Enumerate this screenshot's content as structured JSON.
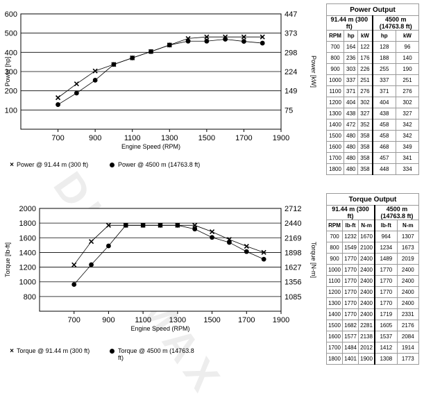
{
  "watermark": "DURAMAX",
  "power_table": {
    "title": "Power Output",
    "group1": "91.44 m (300 ft)",
    "group2": "4500 m (14763.8 ft)",
    "columns": [
      "RPM",
      "hp",
      "kW",
      "hp",
      "kW"
    ],
    "rows": [
      [
        "700",
        "164",
        "122",
        "128",
        "96"
      ],
      [
        "800",
        "236",
        "176",
        "188",
        "140"
      ],
      [
        "900",
        "303",
        "226",
        "255",
        "190"
      ],
      [
        "1000",
        "337",
        "251",
        "337",
        "251"
      ],
      [
        "1100",
        "371",
        "276",
        "371",
        "276"
      ],
      [
        "1200",
        "404",
        "302",
        "404",
        "302"
      ],
      [
        "1300",
        "438",
        "327",
        "438",
        "327"
      ],
      [
        "1400",
        "472",
        "352",
        "458",
        "342"
      ],
      [
        "1500",
        "480",
        "358",
        "458",
        "342"
      ],
      [
        "1600",
        "480",
        "358",
        "468",
        "349"
      ],
      [
        "1700",
        "480",
        "358",
        "457",
        "341"
      ],
      [
        "1800",
        "480",
        "358",
        "448",
        "334"
      ]
    ]
  },
  "torque_table": {
    "title": "Torque Output",
    "group1": "91.44 m (300 ft)",
    "group2": "4500 m (14763.8 ft)",
    "columns": [
      "RPM",
      "lb-ft",
      "N-m",
      "lb-ft",
      "N-m"
    ],
    "rows": [
      [
        "700",
        "1232",
        "1670",
        "964",
        "1307"
      ],
      [
        "800",
        "1549",
        "2100",
        "1234",
        "1673"
      ],
      [
        "900",
        "1770",
        "2400",
        "1489",
        "2019"
      ],
      [
        "1000",
        "1770",
        "2400",
        "1770",
        "2400"
      ],
      [
        "1100",
        "1770",
        "2400",
        "1770",
        "2400"
      ],
      [
        "1200",
        "1770",
        "2400",
        "1770",
        "2400"
      ],
      [
        "1300",
        "1770",
        "2400",
        "1770",
        "2400"
      ],
      [
        "1400",
        "1770",
        "2400",
        "1719",
        "2331"
      ],
      [
        "1500",
        "1682",
        "2281",
        "1605",
        "2176"
      ],
      [
        "1600",
        "1577",
        "2138",
        "1537",
        "2084"
      ],
      [
        "1700",
        "1484",
        "2012",
        "1412",
        "1914"
      ],
      [
        "1800",
        "1401",
        "1900",
        "1308",
        "1773"
      ]
    ]
  },
  "chart_data": [
    {
      "type": "line",
      "xlabel": "Engine Speed (RPM)",
      "ylabel": "Power [hp]",
      "y2label": "Power [kW]",
      "x": [
        700,
        800,
        900,
        1000,
        1100,
        1200,
        1300,
        1400,
        1500,
        1600,
        1700,
        1800
      ],
      "xlim": [
        500,
        1900
      ],
      "xticks": [
        700,
        900,
        1100,
        1300,
        1500,
        1700,
        1900
      ],
      "ylim": [
        0,
        600
      ],
      "yticks": [
        100,
        200,
        300,
        400,
        500,
        600
      ],
      "y2ticks": [
        75,
        149,
        224,
        298,
        373,
        447
      ],
      "grid": true,
      "legend_position": "bottom",
      "series": [
        {
          "name": "Power @ 91.44 m (300 ft)",
          "marker": "x",
          "values": [
            164,
            236,
            303,
            337,
            371,
            404,
            438,
            472,
            480,
            480,
            480,
            480
          ]
        },
        {
          "name": "Power @ 4500 m (14763.8 ft)",
          "marker": "dot",
          "values": [
            128,
            188,
            255,
            337,
            371,
            404,
            438,
            458,
            458,
            468,
            457,
            448
          ]
        }
      ]
    },
    {
      "type": "line",
      "xlabel": "Engine Speed (RPM)",
      "ylabel": "Torque [lb-ft]",
      "y2label": "Torque [N-m]",
      "x": [
        700,
        800,
        900,
        1000,
        1100,
        1200,
        1300,
        1400,
        1500,
        1600,
        1700,
        1800
      ],
      "xlim": [
        500,
        1900
      ],
      "xticks": [
        700,
        900,
        1100,
        1300,
        1500,
        1700,
        1900
      ],
      "ylim": [
        600,
        2000
      ],
      "yticks": [
        800,
        1000,
        1200,
        1400,
        1600,
        1800,
        2000
      ],
      "y2ticks": [
        1085,
        1356,
        1627,
        1898,
        2169,
        2440,
        2712
      ],
      "grid": true,
      "legend_position": "bottom",
      "series": [
        {
          "name": "Torque @ 91.44 m (300 ft)",
          "marker": "x",
          "values": [
            1232,
            1549,
            1770,
            1770,
            1770,
            1770,
            1770,
            1770,
            1682,
            1577,
            1484,
            1401
          ]
        },
        {
          "name": "Torque @ 4500 m (14763.8 ft)",
          "marker": "dot",
          "values": [
            964,
            1234,
            1489,
            1770,
            1770,
            1770,
            1770,
            1719,
            1605,
            1537,
            1412,
            1308
          ]
        }
      ]
    }
  ]
}
